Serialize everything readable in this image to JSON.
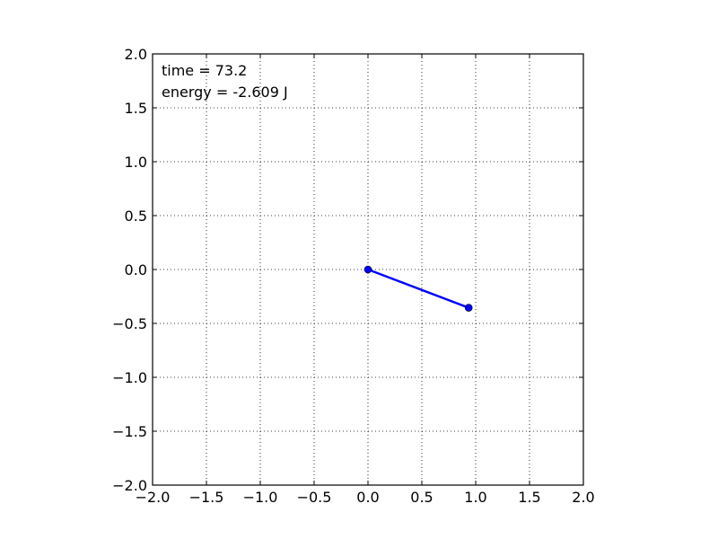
{
  "chart_data": {
    "type": "line",
    "title": "",
    "xlabel": "",
    "ylabel": "",
    "xlim": [
      -2.0,
      2.0
    ],
    "ylim": [
      -2.0,
      2.0
    ],
    "x_ticks": [
      "−2.0",
      "−1.5",
      "−1.0",
      "−0.5",
      "0.0",
      "0.5",
      "1.0",
      "1.5",
      "2.0"
    ],
    "y_ticks": [
      "2.0",
      "1.5",
      "1.0",
      "0.5",
      "0.0",
      "−0.5",
      "−1.0",
      "−1.5",
      "−2.0"
    ],
    "grid": true,
    "grid_style": "dotted",
    "series": [
      {
        "color": "#0000ff",
        "marker": "circle",
        "x": [
          0.0,
          0.935
        ],
        "y": [
          0.0,
          -0.355
        ]
      }
    ],
    "annotations": {
      "time": "time = 73.2",
      "energy": "energy = -2.609 J"
    }
  }
}
